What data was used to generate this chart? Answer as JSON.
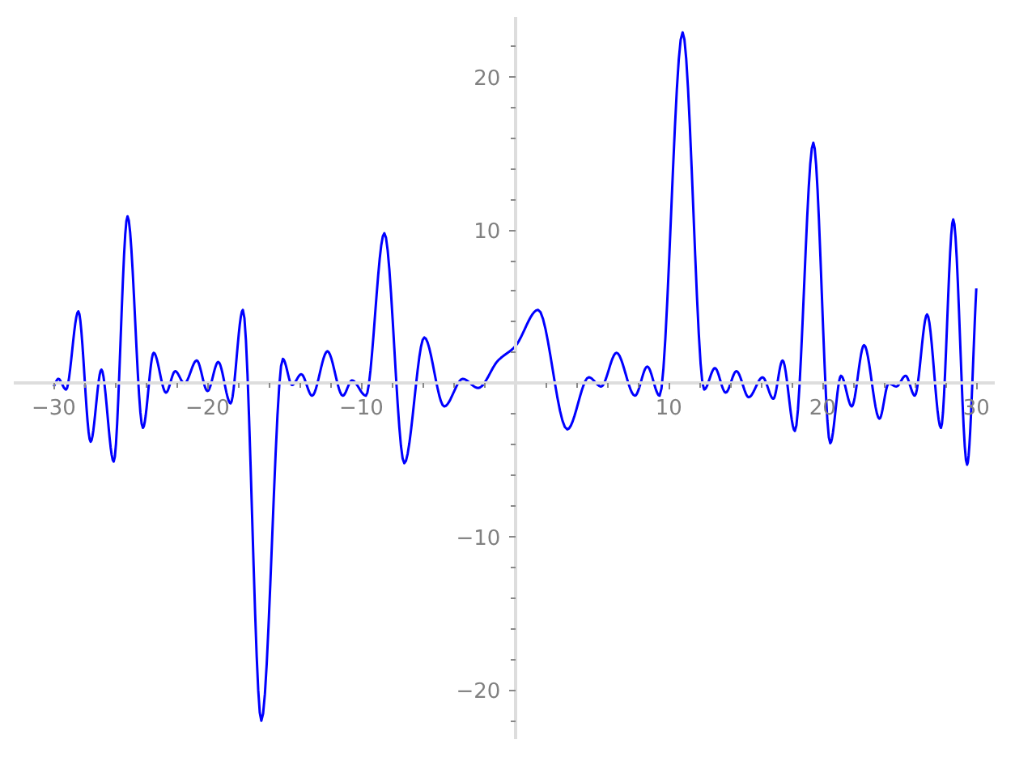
{
  "chart_data": {
    "type": "line",
    "x": [
      -30,
      -29.7,
      -29.2,
      -28.4,
      -27.6,
      -26.9,
      -26.1,
      -25.2,
      -24.2,
      -23.5,
      -22.7,
      -22.1,
      -21.5,
      -20.7,
      -20.0,
      -19.3,
      -18.5,
      -17.7,
      -16.5,
      -15.1,
      -14.5,
      -13.9,
      -13.2,
      -12.2,
      -11.2,
      -10.6,
      -9.7,
      -8.5,
      -7.2,
      -5.9,
      -4.6,
      -3.4,
      -2.4,
      -1.1,
      0,
      1.5,
      3.4,
      4.8,
      5.6,
      6.6,
      7.8,
      8.6,
      9.4,
      10.9,
      12.3,
      13.0,
      13.7,
      14.4,
      15.2,
      16.1,
      16.8,
      17.4,
      18.2,
      19.4,
      20.5,
      21.2,
      21.9,
      22.7,
      23.7,
      24.3,
      24.8,
      25.4,
      26.0,
      26.8,
      27.7,
      28.5,
      29.4,
      30
    ],
    "series": [
      {
        "color": "#0000ff",
        "values": [
          -0.2,
          0.3,
          -0.4,
          4.7,
          -3.8,
          0.9,
          -5.1,
          10.9,
          -2.9,
          2.0,
          -0.6,
          0.8,
          0,
          1.5,
          -0.5,
          1.4,
          -1.3,
          4.8,
          -22,
          1.6,
          -0.1,
          0.6,
          -0.8,
          2.1,
          -0.8,
          0.2,
          -0.8,
          9.8,
          -5.2,
          3.0,
          -1.5,
          0.3,
          -0.3,
          1.5,
          2.4,
          4.8,
          -3.0,
          0.4,
          -0.2,
          2.0,
          -0.8,
          1.1,
          -0.8,
          22.9,
          -0.4,
          1.0,
          -0.6,
          0.8,
          -0.9,
          0.4,
          -1.0,
          1.5,
          -3.1,
          15.7,
          -3.9,
          0.5,
          -1.5,
          2.5,
          -2.3,
          0.0,
          -0.2,
          0.5,
          -0.8,
          4.5,
          -2.9,
          10.7,
          -5.3,
          6.2
        ]
      }
    ],
    "xlim": [
      -32.6,
      31.2
    ],
    "ylim": [
      -23.2,
      23.9
    ],
    "xticks": [
      -30,
      {
        "value": -28,
        "label": null
      },
      {
        "value": -26,
        "label": null
      },
      {
        "value": -24,
        "label": null
      },
      {
        "value": -22,
        "label": null
      },
      -20,
      {
        "value": -18,
        "label": null
      },
      {
        "value": -16,
        "label": null
      },
      {
        "value": -14,
        "label": null
      },
      {
        "value": -12,
        "label": null
      },
      -10,
      {
        "value": -8,
        "label": null
      },
      {
        "value": -6,
        "label": null
      },
      {
        "value": -4,
        "label": null
      },
      {
        "value": -2,
        "label": null
      },
      {
        "value": 2,
        "label": null
      },
      {
        "value": 4,
        "label": null
      },
      {
        "value": 6,
        "label": null
      },
      {
        "value": 8,
        "label": null
      },
      10,
      {
        "value": 12,
        "label": null
      },
      {
        "value": 14,
        "label": null
      },
      {
        "value": 16,
        "label": null
      },
      {
        "value": 18,
        "label": null
      },
      20,
      {
        "value": 22,
        "label": null
      },
      {
        "value": 24,
        "label": null
      },
      {
        "value": 26,
        "label": null
      },
      {
        "value": 28,
        "label": null
      },
      30
    ],
    "yticks": [
      -20,
      {
        "value": -22,
        "label": null
      },
      {
        "value": -18,
        "label": null
      },
      {
        "value": -16,
        "label": null
      },
      {
        "value": -14,
        "label": null
      },
      {
        "value": -12,
        "label": null
      },
      -10,
      {
        "value": -8,
        "label": null
      },
      {
        "value": -6,
        "label": null
      },
      {
        "value": -4,
        "label": null
      },
      {
        "value": -2,
        "label": null
      },
      {
        "value": 2,
        "label": null
      },
      {
        "value": 4,
        "label": null
      },
      {
        "value": 6,
        "label": null
      },
      {
        "value": 8,
        "label": null
      },
      10,
      {
        "value": 12,
        "label": null
      },
      {
        "value": 14,
        "label": null
      },
      {
        "value": 16,
        "label": null
      },
      {
        "value": 18,
        "label": null
      },
      20,
      {
        "value": 22,
        "label": null
      }
    ],
    "grid": false,
    "line_style": "solid"
  }
}
